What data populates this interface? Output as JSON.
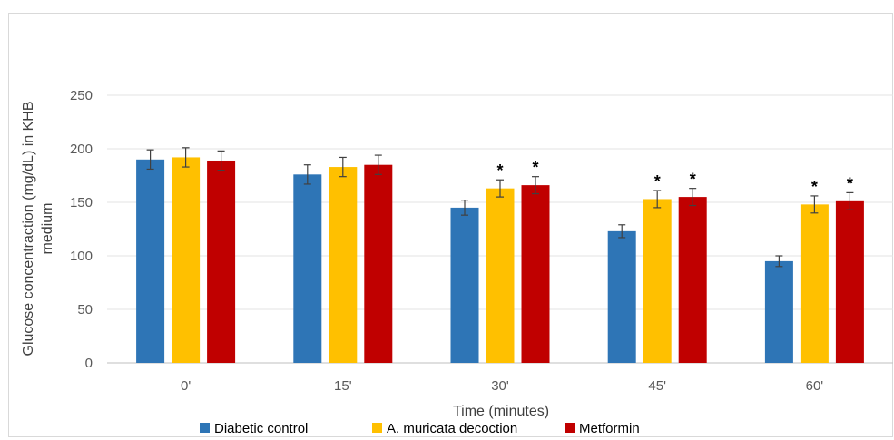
{
  "chart_data": {
    "type": "bar",
    "xlabel": "Time (minutes)",
    "ylabel": "Glucose concentraction (mg/dL) in KHB medium",
    "ylim": [
      0,
      250
    ],
    "yticks": [
      0,
      50,
      100,
      150,
      200,
      250
    ],
    "grid": true,
    "legend_position": "bottom",
    "categories": [
      "0'",
      "15'",
      "30'",
      "45'",
      "60'"
    ],
    "series": [
      {
        "name": "Diabetic control",
        "color": "#2e75b6",
        "values": [
          190,
          176,
          145,
          123,
          95
        ],
        "errors": [
          9,
          9,
          7,
          6,
          5
        ],
        "significant": [
          false,
          false,
          false,
          false,
          false
        ]
      },
      {
        "name": "A. muricata decoction",
        "color": "#ffc000",
        "values": [
          192,
          183,
          163,
          153,
          148
        ],
        "errors": [
          9,
          9,
          8,
          8,
          8
        ],
        "significant": [
          false,
          false,
          true,
          true,
          true
        ]
      },
      {
        "name": "Metformin",
        "color": "#c00000",
        "values": [
          189,
          185,
          166,
          155,
          151
        ],
        "errors": [
          9,
          9,
          8,
          8,
          8
        ],
        "significant": [
          false,
          false,
          true,
          true,
          true
        ]
      }
    ],
    "annotation_symbol": "*"
  }
}
